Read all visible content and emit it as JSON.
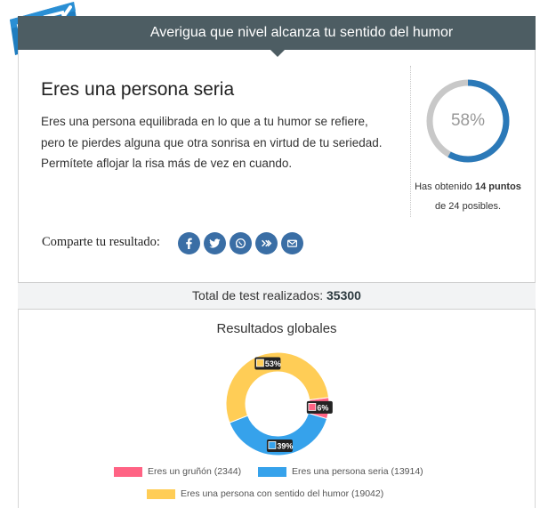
{
  "header": {
    "title": "Averigua que nivel alcanza tu sentido del humor"
  },
  "result": {
    "title": "Eres una persona seria",
    "description_lines": [
      "Eres una persona equilibrada en lo que a tu humor se refiere,",
      "pero te pierdes alguna que otra sonrisa en virtud de tu seriedad.",
      "Permítete aflojar la risa más de vez en cuando."
    ],
    "percent": 58,
    "percent_label": "58%",
    "score_prefix": "Has obtenido",
    "score_points": "14 puntos",
    "score_suffix": "de 24 posibles."
  },
  "share": {
    "label": "Comparte tu resultado:",
    "icons": [
      "facebook-icon",
      "twitter-icon",
      "whatsapp-icon",
      "xing-icon",
      "email-icon"
    ]
  },
  "totals": {
    "label": "Total de test realizados:",
    "count": "35300"
  },
  "colors": {
    "header": "#4d5d63",
    "ring_fill": "#2b79b8",
    "ring_track": "#c8c8c8",
    "share_icon": "#3a6ea5",
    "logo": "#1f7dbf"
  },
  "chart_data": {
    "type": "pie",
    "title": "Resultados globales",
    "categories": [
      "Eres un gruñón",
      "Eres una persona seria",
      "Eres una persona con sentido del humor"
    ],
    "values": [
      2344,
      13914,
      19042
    ],
    "percent_labels": [
      "6%",
      "39%",
      "53%"
    ],
    "colors": [
      "#ff6384",
      "#36a2eb",
      "#ffcd56"
    ],
    "legend": [
      "Eres un gruñón (2344)",
      "Eres una persona seria (13914)",
      "Eres una persona con sentido del humor (19042)"
    ],
    "legend_position": "bottom",
    "donut": true
  }
}
